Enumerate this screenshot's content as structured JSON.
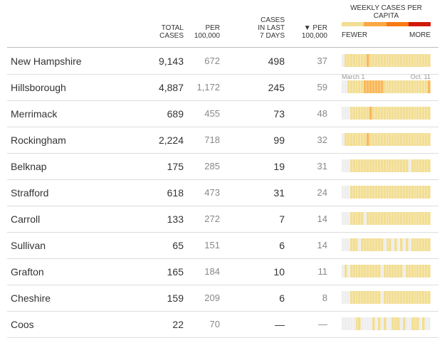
{
  "header": {
    "total_cases": [
      "TOTAL",
      "CASES"
    ],
    "per_100k": [
      "PER",
      "100,000"
    ],
    "cases_7": [
      "CASES",
      "IN LAST",
      "7 DAYS"
    ],
    "per_100k_7": [
      "▼ PER",
      "100,000"
    ],
    "legend": {
      "title": "WEEKLY CASES PER CAPITA",
      "fewer": "FEWER",
      "more": "MORE",
      "colors": [
        "#f2de94",
        "#fba842",
        "#f87a14",
        "#d11a0a"
      ]
    },
    "axis_start": "March 1",
    "axis_end": "Oct. 11"
  },
  "level_colors": {
    "0": "#eeeeee",
    "1": "#f2de94",
    "2": "#f9b85a"
  },
  "rows": [
    {
      "name": "New Hampshire",
      "total": "9,143",
      "per": "672",
      "cases7": "498",
      "per7": "37",
      "weeks": "01111111121111111111111111111111"
    },
    {
      "name": "Hillsborough",
      "total": "4,887",
      "per": "1,172",
      "cases7": "245",
      "per7": "59",
      "weeks": "00111111222222211111111111111112"
    },
    {
      "name": "Merrimack",
      "total": "689",
      "per": "455",
      "cases7": "73",
      "per7": "48",
      "weeks": "00011111112111111111111111111111"
    },
    {
      "name": "Rockingham",
      "total": "2,224",
      "per": "718",
      "cases7": "99",
      "per7": "32",
      "weeks": "01111111121111111111111111111111"
    },
    {
      "name": "Belknap",
      "total": "175",
      "per": "285",
      "cases7": "19",
      "per7": "31",
      "weeks": "00011111111111111111111101111111"
    },
    {
      "name": "Strafford",
      "total": "618",
      "per": "473",
      "cases7": "31",
      "per7": "24",
      "weeks": "00011111111111111111111111111111"
    },
    {
      "name": "Carroll",
      "total": "133",
      "per": "272",
      "cases7": "7",
      "per7": "14",
      "weeks": "00011111011111111111111111111111"
    },
    {
      "name": "Sullivan",
      "total": "65",
      "per": "151",
      "cases7": "6",
      "per7": "14",
      "weeks": "00011101111111101101010101111111"
    },
    {
      "name": "Grafton",
      "total": "165",
      "per": "184",
      "cases7": "10",
      "per7": "11",
      "weeks": "01011111111111011111110111111111"
    },
    {
      "name": "Cheshire",
      "total": "159",
      "per": "209",
      "cases7": "6",
      "per7": "8",
      "weeks": "00011111111111011111111111111111"
    },
    {
      "name": "Coos",
      "total": "22",
      "per": "70",
      "cases7": "—",
      "per7": "—",
      "weeks": "00000110000101010011101001110100"
    }
  ]
}
